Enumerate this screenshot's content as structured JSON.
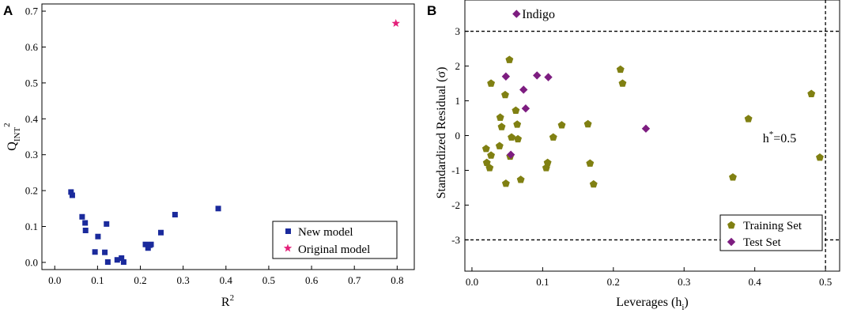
{
  "chart_data": [
    {
      "type": "scatter",
      "panel_label": "A",
      "xlabel": "R",
      "xlabel_sup": "2",
      "ylabel": "Q",
      "ylabel_sub": "INT",
      "ylabel_sup": "2",
      "xlim": [
        -0.03,
        0.84
      ],
      "ylim": [
        -0.02,
        0.72
      ],
      "xticks": [
        "0.0",
        "0.1",
        "0.2",
        "0.3",
        "0.4",
        "0.5",
        "0.6",
        "0.7",
        "0.8"
      ],
      "xtick_values": [
        0,
        0.1,
        0.2,
        0.3,
        0.4,
        0.5,
        0.6,
        0.7,
        0.8
      ],
      "yticks": [
        "0.0",
        "0.1",
        "0.2",
        "0.3",
        "0.4",
        "0.5",
        "0.6",
        "0.7"
      ],
      "ytick_values": [
        0,
        0.1,
        0.2,
        0.3,
        0.4,
        0.5,
        0.6,
        0.7
      ],
      "legend_position": "bottom-right",
      "series": [
        {
          "name": "New model",
          "color": "#1a2a9c",
          "marker": "square",
          "points": [
            [
              0.038,
              0.196
            ],
            [
              0.041,
              0.187
            ],
            [
              0.064,
              0.127
            ],
            [
              0.071,
              0.11
            ],
            [
              0.072,
              0.089
            ],
            [
              0.094,
              0.029
            ],
            [
              0.101,
              0.072
            ],
            [
              0.117,
              0.028
            ],
            [
              0.121,
              0.107
            ],
            [
              0.124,
              0.001
            ],
            [
              0.146,
              0.007
            ],
            [
              0.156,
              0.012
            ],
            [
              0.161,
              0.001
            ],
            [
              0.212,
              0.05
            ],
            [
              0.218,
              0.04
            ],
            [
              0.222,
              0.048
            ],
            [
              0.225,
              0.05
            ],
            [
              0.248,
              0.083
            ],
            [
              0.281,
              0.133
            ],
            [
              0.382,
              0.15
            ]
          ]
        },
        {
          "name": "Original model",
          "color": "#e4207a",
          "marker": "star",
          "points": [
            [
              0.797,
              0.666
            ]
          ]
        }
      ]
    },
    {
      "type": "scatter",
      "panel_label": "B",
      "xlabel": "Leverages (h",
      "xlabel_sub": "i",
      "xlabel_end": ")",
      "ylabel": "Standardized Residual (σ)",
      "xlim": [
        -0.01,
        0.52
      ],
      "ylim": [
        -3.9,
        3.9
      ],
      "xticks": [
        "0.0",
        "0.1",
        "0.2",
        "0.3",
        "0.4",
        "0.5"
      ],
      "xtick_values": [
        0,
        0.1,
        0.2,
        0.3,
        0.4,
        0.5
      ],
      "yticks": [
        "-3",
        "-2",
        "-1",
        "0",
        "1",
        "2",
        "3"
      ],
      "ytick_values": [
        -3,
        -2,
        -1,
        0,
        1,
        2,
        3
      ],
      "reference_lines": {
        "horizontal": [
          3,
          -3
        ],
        "vertical": [
          0.5
        ],
        "vertical_label": "h",
        "vertical_label_sup": "*",
        "vertical_label_end": "=0.5"
      },
      "annotation": {
        "text": "Indigo",
        "x": 0.063,
        "y": 3.5
      },
      "legend_position": "bottom-right",
      "series": [
        {
          "name": "Training Set",
          "color": "#808012",
          "marker": "pentagon",
          "points": [
            [
              0.02,
              -0.38
            ],
            [
              0.021,
              -0.78
            ],
            [
              0.025,
              -0.93
            ],
            [
              0.027,
              -0.57
            ],
            [
              0.027,
              1.5
            ],
            [
              0.039,
              -0.3
            ],
            [
              0.04,
              0.52
            ],
            [
              0.042,
              0.25
            ],
            [
              0.047,
              1.17
            ],
            [
              0.048,
              -1.38
            ],
            [
              0.053,
              2.18
            ],
            [
              0.054,
              -0.6
            ],
            [
              0.056,
              -0.05
            ],
            [
              0.062,
              0.72
            ],
            [
              0.064,
              0.32
            ],
            [
              0.065,
              -0.1
            ],
            [
              0.069,
              -1.27
            ],
            [
              0.105,
              -0.93
            ],
            [
              0.107,
              -0.78
            ],
            [
              0.115,
              -0.05
            ],
            [
              0.127,
              0.3
            ],
            [
              0.164,
              0.33
            ],
            [
              0.167,
              -0.8
            ],
            [
              0.172,
              -1.4
            ],
            [
              0.21,
              1.9
            ],
            [
              0.213,
              1.5
            ],
            [
              0.369,
              -1.2
            ],
            [
              0.391,
              0.48
            ],
            [
              0.48,
              1.2
            ],
            [
              0.492,
              -0.63
            ]
          ]
        },
        {
          "name": "Test Set",
          "color": "#7d1d80",
          "marker": "diamond",
          "points": [
            [
              0.048,
              1.7
            ],
            [
              0.055,
              -0.55
            ],
            [
              0.063,
              3.5
            ],
            [
              0.073,
              1.32
            ],
            [
              0.076,
              0.78
            ],
            [
              0.092,
              1.73
            ],
            [
              0.108,
              1.68
            ],
            [
              0.246,
              0.2
            ]
          ]
        }
      ]
    }
  ]
}
